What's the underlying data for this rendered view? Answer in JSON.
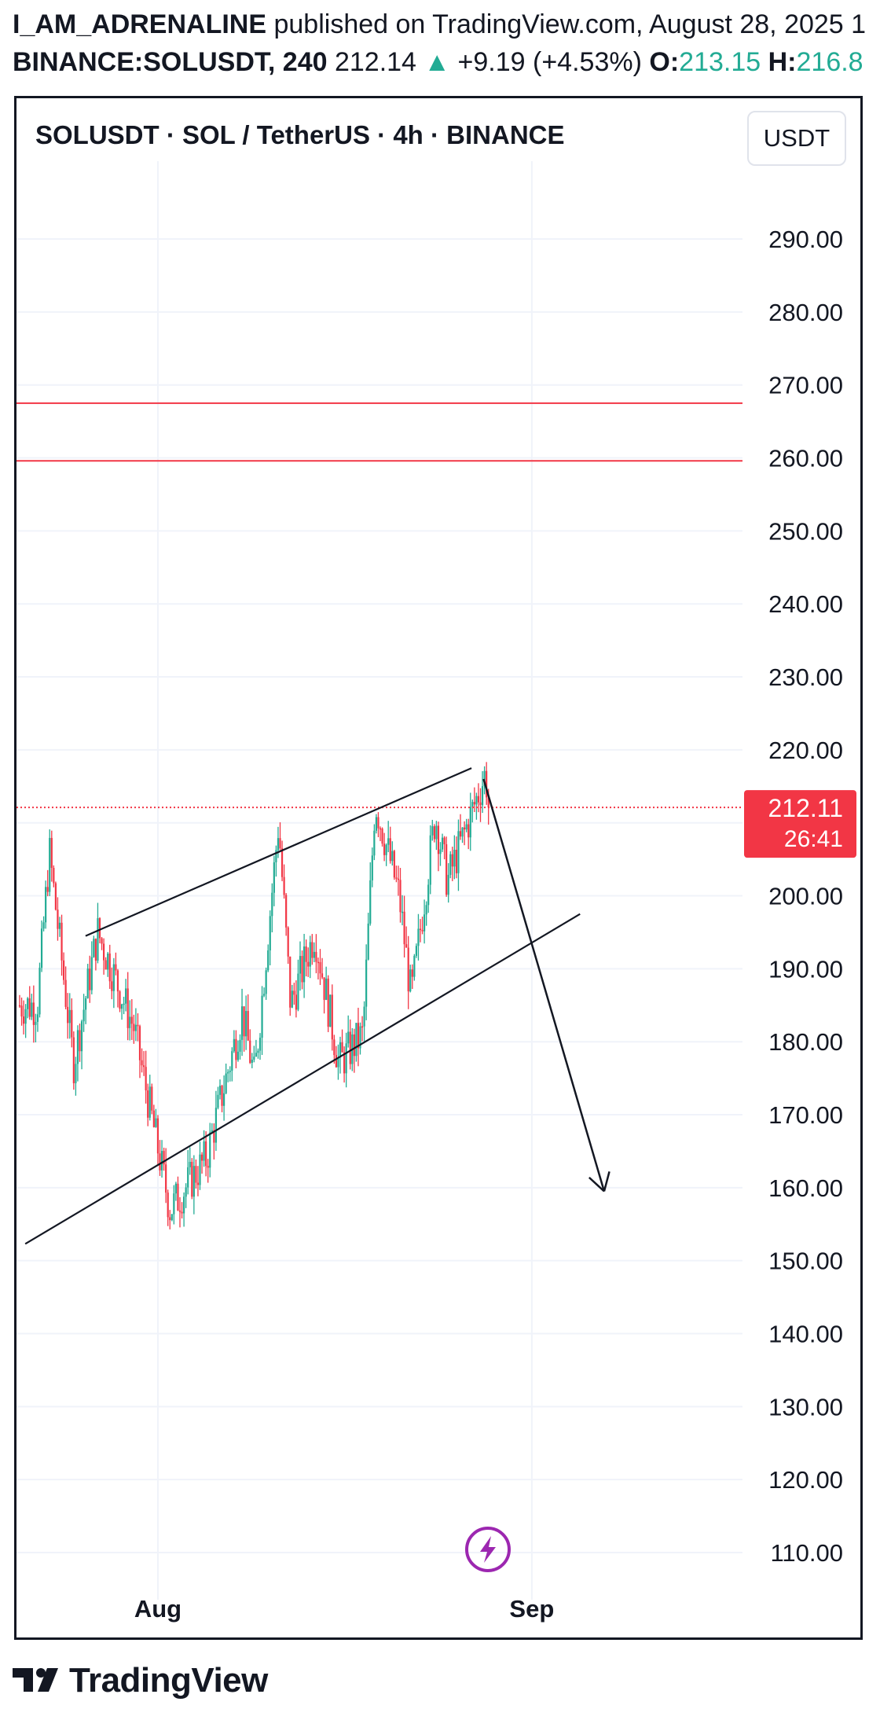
{
  "header": {
    "author": "I_AM_ADRENALINE",
    "published": " published on TradingView.com, August 28, 2025 1",
    "symbol": "BINANCE:SOLUSDT, 240",
    "last": "212.14",
    "change": "+9.19 (+4.53%)",
    "open_label": "O:",
    "open_value": "213.15",
    "high_label": "H:",
    "high_value": "216.8"
  },
  "chart_title": "SOLUSDT · SOL / TetherUS · 4h · BINANCE",
  "currency_button": "USDT",
  "price_badge": {
    "price": "212.11",
    "countdown": "26:41"
  },
  "footer": {
    "brand": "TradingView"
  },
  "colors": {
    "up": "#22ab94",
    "down": "#f23645",
    "line": "#131722",
    "level": "#f23645",
    "grid": "#f0f3fa"
  },
  "icons": [
    "flash-icon",
    "tradingview-logo-icon"
  ],
  "chart_data": {
    "type": "candlestick",
    "title": "SOLUSDT · SOL / TetherUS · 4h · BINANCE",
    "x_ticks": [
      "Aug",
      "Sep"
    ],
    "y_ticks": [
      "290.00",
      "280.00",
      "270.00",
      "260.00",
      "250.00",
      "240.00",
      "230.00",
      "220.00",
      "200.00",
      "190.00",
      "180.00",
      "170.00",
      "160.00",
      "150.00",
      "140.00",
      "130.00",
      "120.00",
      "110.00"
    ],
    "y_range": [
      103,
      298
    ],
    "current_price": 212.11,
    "horizontal_levels": [
      267.5,
      259.6
    ],
    "trendlines": [
      {
        "from": [
          "2025-07-26",
          194.5
        ],
        "to": [
          "2025-08-27",
          217.5
        ]
      },
      {
        "from": [
          "2025-07-21",
          152.3
        ],
        "to": [
          "2025-09-05",
          197.5
        ]
      }
    ],
    "arrow": {
      "from": [
        "2025-08-28",
        216.0
      ],
      "to": [
        "2025-09-07",
        159.5
      ]
    },
    "key_points": [
      {
        "date": "2025-07-22",
        "price": 185
      },
      {
        "date": "2025-07-23",
        "price": 206
      },
      {
        "date": "2025-07-25",
        "price": 177
      },
      {
        "date": "2025-07-27",
        "price": 195
      },
      {
        "date": "2025-07-30",
        "price": 182
      },
      {
        "date": "2025-08-02",
        "price": 157
      },
      {
        "date": "2025-08-05",
        "price": 164
      },
      {
        "date": "2025-08-08",
        "price": 184
      },
      {
        "date": "2025-08-09",
        "price": 175
      },
      {
        "date": "2025-08-11",
        "price": 210
      },
      {
        "date": "2025-08-12",
        "price": 185
      },
      {
        "date": "2025-08-14",
        "price": 195
      },
      {
        "date": "2025-08-16",
        "price": 177
      },
      {
        "date": "2025-08-18",
        "price": 181
      },
      {
        "date": "2025-08-19",
        "price": 213
      },
      {
        "date": "2025-08-21",
        "price": 200
      },
      {
        "date": "2025-08-22",
        "price": 186
      },
      {
        "date": "2025-08-24",
        "price": 211
      },
      {
        "date": "2025-08-25",
        "price": 202
      },
      {
        "date": "2025-08-26",
        "price": 216.8
      },
      {
        "date": "2025-08-26",
        "price": 212.1
      }
    ]
  }
}
